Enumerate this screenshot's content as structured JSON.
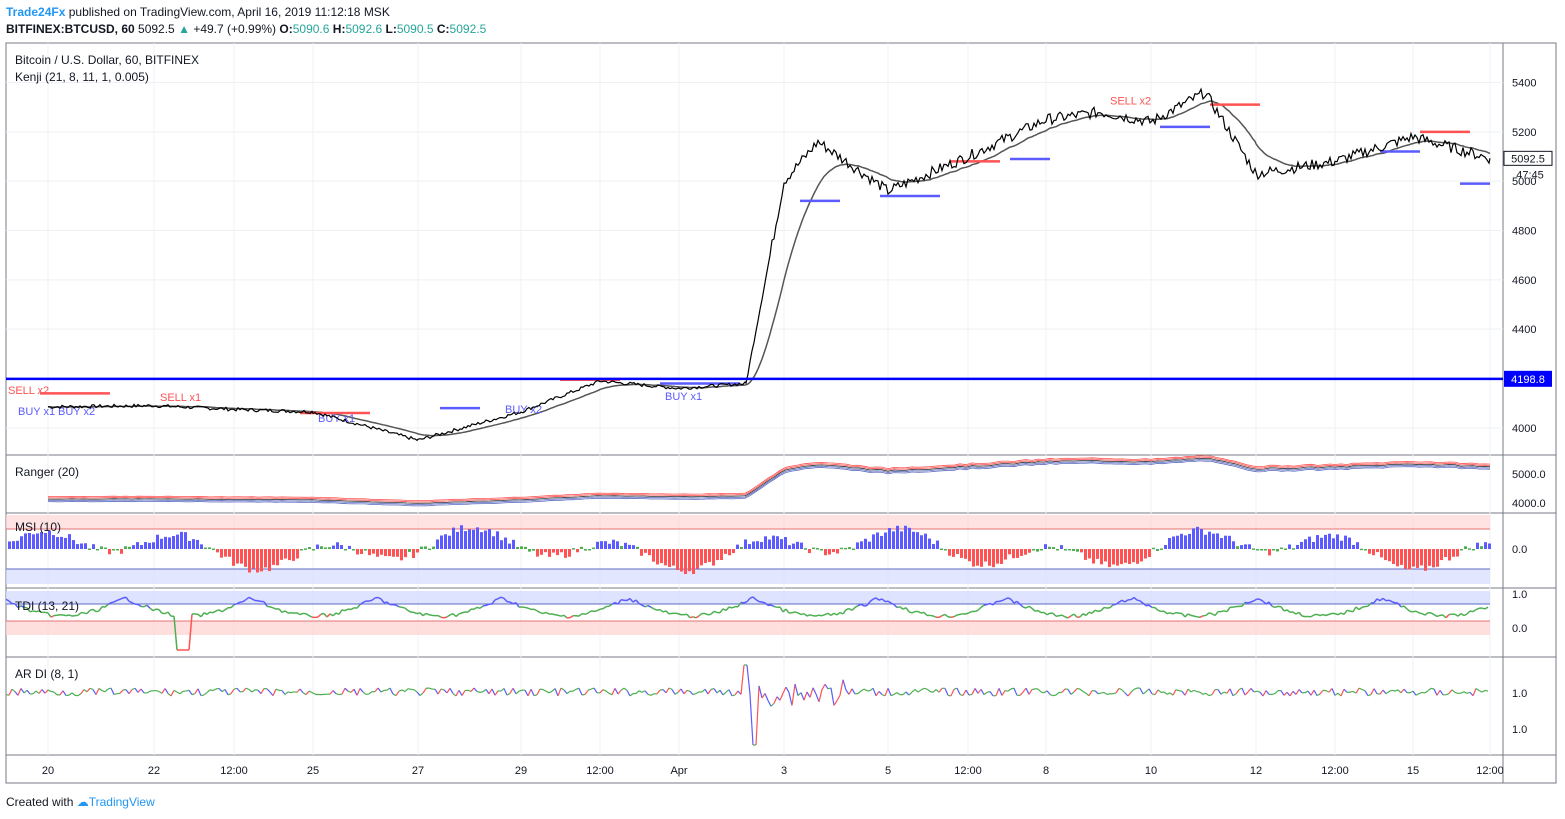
{
  "header": {
    "publisher": "Trade24Fx",
    "published_text": "published on TradingView.com, April 16, 2019 11:12:18 MSK",
    "symbol": "BITFINEX:BTCUSD, 60",
    "last": "5092.5",
    "change": "+49.7 (+0.99%)",
    "o_label": "O:",
    "o": "5090.6",
    "h_label": "H:",
    "h": "5092.6",
    "l_label": "L:",
    "l": "5090.5",
    "c_label": "C:",
    "c": "5092.5"
  },
  "footer": {
    "created_with": "Created with",
    "brand": "TradingView"
  },
  "colors": {
    "blue_line": "#0000ff",
    "buy": "#5b5bff",
    "sell": "#ff5252",
    "grid": "#eef0f3",
    "band_red": "#ffcccc",
    "band_blue": "#d6dcff"
  },
  "chart_data": {
    "type": "line",
    "title": "Bitcoin / U.S. Dollar, 60, BITFINEX",
    "indicator_label": "Kenji (21, 8, 11, 1, 0.005)",
    "x_ticks": [
      "20",
      "22",
      "12:00",
      "25",
      "27",
      "29",
      "12:00",
      "Apr",
      "3",
      "5",
      "12:00",
      "8",
      "10",
      "12",
      "12:00",
      "15",
      "12:00"
    ],
    "y_ticks": [
      4000,
      4200,
      4400,
      4600,
      4800,
      5000,
      5200,
      5400
    ],
    "ylim": [
      3890,
      5560
    ],
    "price_label": "5092.5",
    "countdown_label": "47:45",
    "level_line": 4198.8,
    "level_label": "4198.8",
    "price_series": {
      "x": [
        "20",
        "22",
        "12:00",
        "25",
        "27",
        "29",
        "12:00",
        "Apr",
        "Apr 2",
        "3",
        "Apr 4",
        "5",
        "12:00",
        "8",
        "Apr 9",
        "10",
        "Apr 11",
        "12",
        "12:00",
        "15",
        "12:00"
      ],
      "close": [
        4085,
        4090,
        4075,
        4065,
        3950,
        4065,
        4190,
        4160,
        4180,
        5000,
        5160,
        4960,
        5100,
        5250,
        5280,
        5240,
        5360,
        5030,
        5080,
        5180,
        5092.5
      ]
    },
    "signal_labels": [
      "SELL x2",
      "BUY x1",
      "BUY x2",
      "SELL x1",
      "BUY x1",
      "SELL x2",
      "BUY x2",
      "BUY x1"
    ],
    "panels": [
      {
        "name": "Ranger (20)",
        "y_ticks": [
          "5000.0",
          "4000.0"
        ]
      },
      {
        "name": "MSI (10)",
        "y_ticks": [
          "0.0"
        ]
      },
      {
        "name": "TDI (13, 21)",
        "y_ticks": [
          "1.0",
          "0.0"
        ]
      },
      {
        "name": "AR DI (8, 1)",
        "y_ticks": [
          "1.0",
          "1.0"
        ]
      }
    ]
  }
}
